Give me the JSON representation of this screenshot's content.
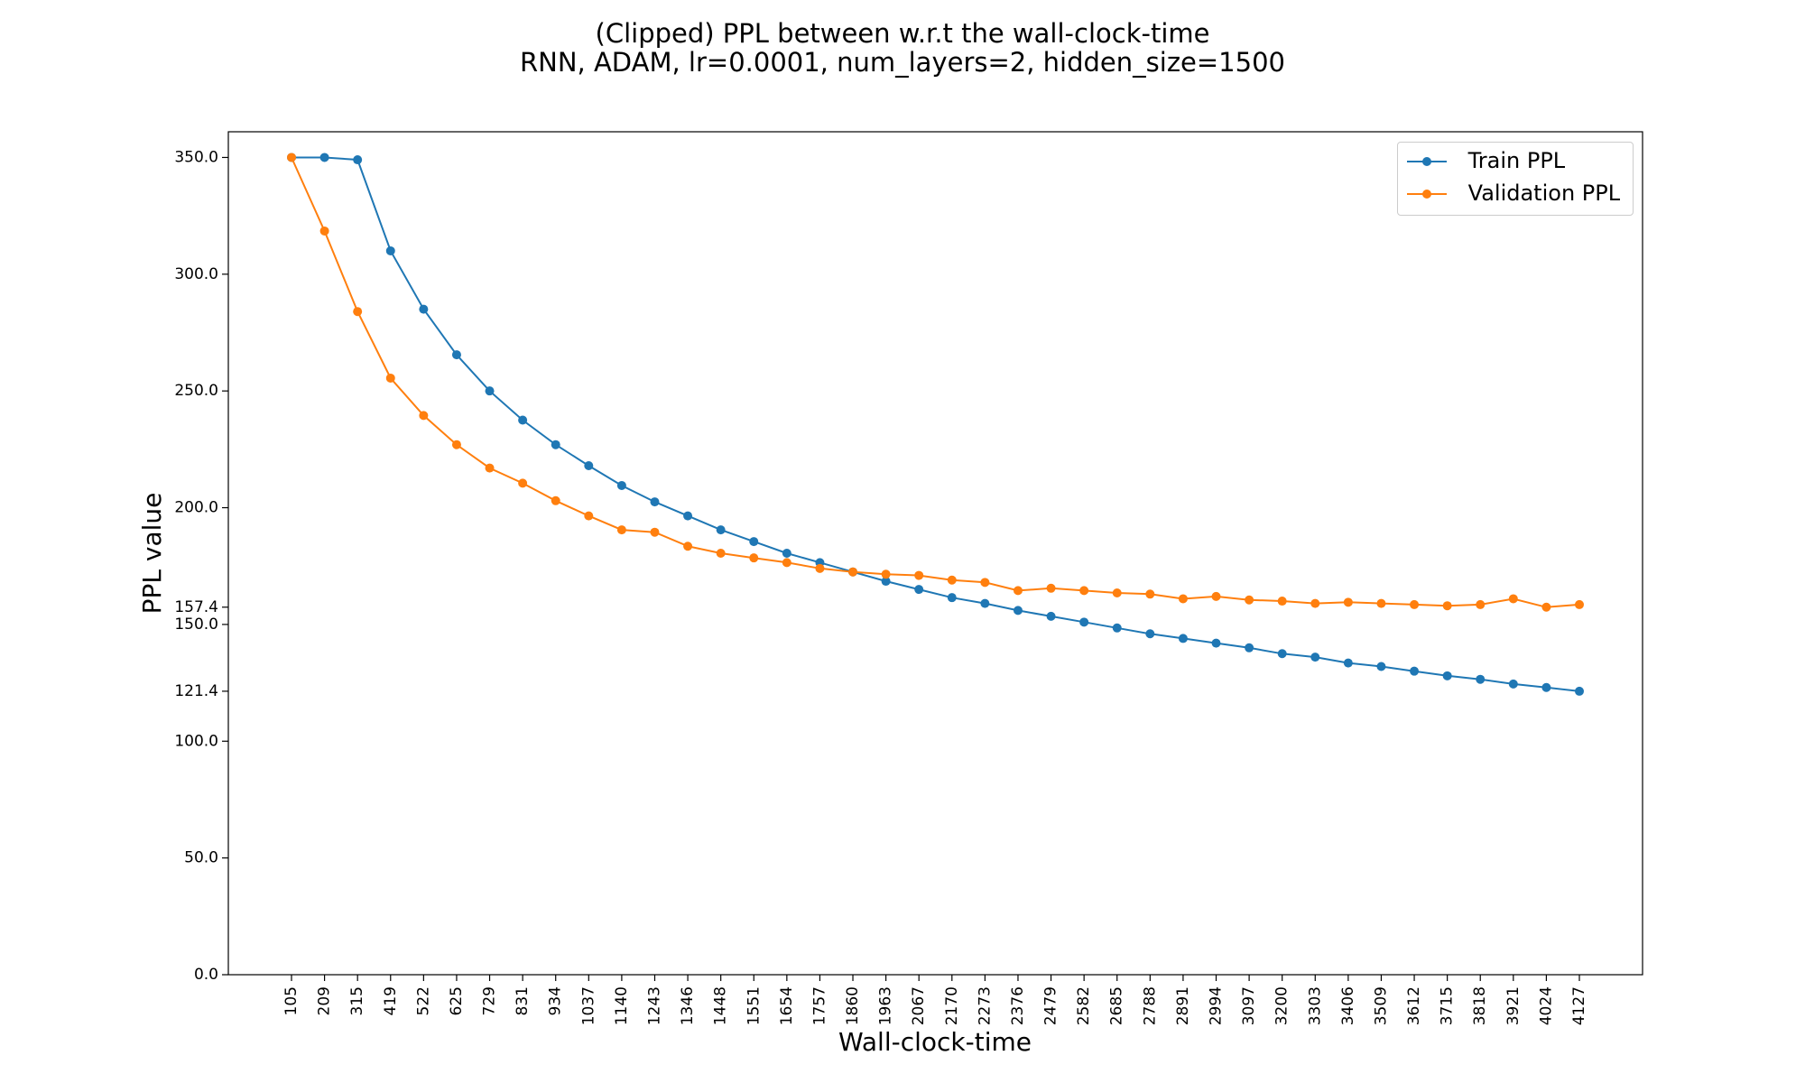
{
  "chart_data": {
    "type": "line",
    "title": "(Clipped) PPL between w.r.t the wall-clock-time",
    "subtitle": "RNN, ADAM, lr=0.0001,  num_layers=2,  hidden_size=1500",
    "xlabel": "Wall-clock-time",
    "ylabel": "PPL value",
    "x": [
      105,
      209,
      315,
      419,
      522,
      625,
      729,
      831,
      934,
      1037,
      1140,
      1243,
      1346,
      1448,
      1551,
      1654,
      1757,
      1860,
      1963,
      2067,
      2170,
      2273,
      2376,
      2479,
      2582,
      2685,
      2788,
      2891,
      2994,
      3097,
      3200,
      3303,
      3406,
      3509,
      3612,
      3715,
      3818,
      3921,
      4024,
      4127
    ],
    "x_tick_labels": [
      "105",
      "209",
      "315",
      "419",
      "522",
      "625",
      "729",
      "831",
      "934",
      "1037",
      "1140",
      "1243",
      "1346",
      "1448",
      "1551",
      "1654",
      "1757",
      "1860",
      "1963",
      "2067",
      "2170",
      "2273",
      "2376",
      "2479",
      "2582",
      "2685",
      "2788",
      "2891",
      "2994",
      "3097",
      "3200",
      "3303",
      "3406",
      "3509",
      "3612",
      "3715",
      "3818",
      "3921",
      "4024",
      "4127"
    ],
    "y_ticks": [
      0.0,
      50.0,
      100.0,
      121.4,
      150.0,
      157.4,
      200.0,
      250.0,
      300.0,
      350.0
    ],
    "y_tick_labels": [
      "0.0",
      "50.0",
      "100.0",
      "121.4",
      "150.0",
      "157.4",
      "200.0",
      "250.0",
      "300.0",
      "350.0"
    ],
    "ylim": [
      0,
      361
    ],
    "grid": false,
    "legend_position": "top-right",
    "series": [
      {
        "name": "Train PPL",
        "color": "#1f77b4",
        "values": [
          350.0,
          350.0,
          349.0,
          310.0,
          285.0,
          265.5,
          250.0,
          237.5,
          227.0,
          218.0,
          209.5,
          202.5,
          196.5,
          190.5,
          185.5,
          180.5,
          176.5,
          172.5,
          168.5,
          165.0,
          161.5,
          159.0,
          156.0,
          153.5,
          151.0,
          148.5,
          146.0,
          144.0,
          142.0,
          140.0,
          137.5,
          136.0,
          133.5,
          132.0,
          130.0,
          128.0,
          126.5,
          124.5,
          123.0,
          121.4
        ]
      },
      {
        "name": "Validation PPL",
        "color": "#ff7f0e",
        "values": [
          350.0,
          318.5,
          284.0,
          255.5,
          239.5,
          227.0,
          217.0,
          210.5,
          203.0,
          196.5,
          190.5,
          189.5,
          183.5,
          180.5,
          178.5,
          176.5,
          174.0,
          172.5,
          171.5,
          171.0,
          169.0,
          168.0,
          164.5,
          165.5,
          164.5,
          163.5,
          163.0,
          161.0,
          162.0,
          160.5,
          160.0,
          159.0,
          159.5,
          159.0,
          158.5,
          158.0,
          158.5,
          161.0,
          157.4,
          158.5
        ]
      }
    ]
  }
}
